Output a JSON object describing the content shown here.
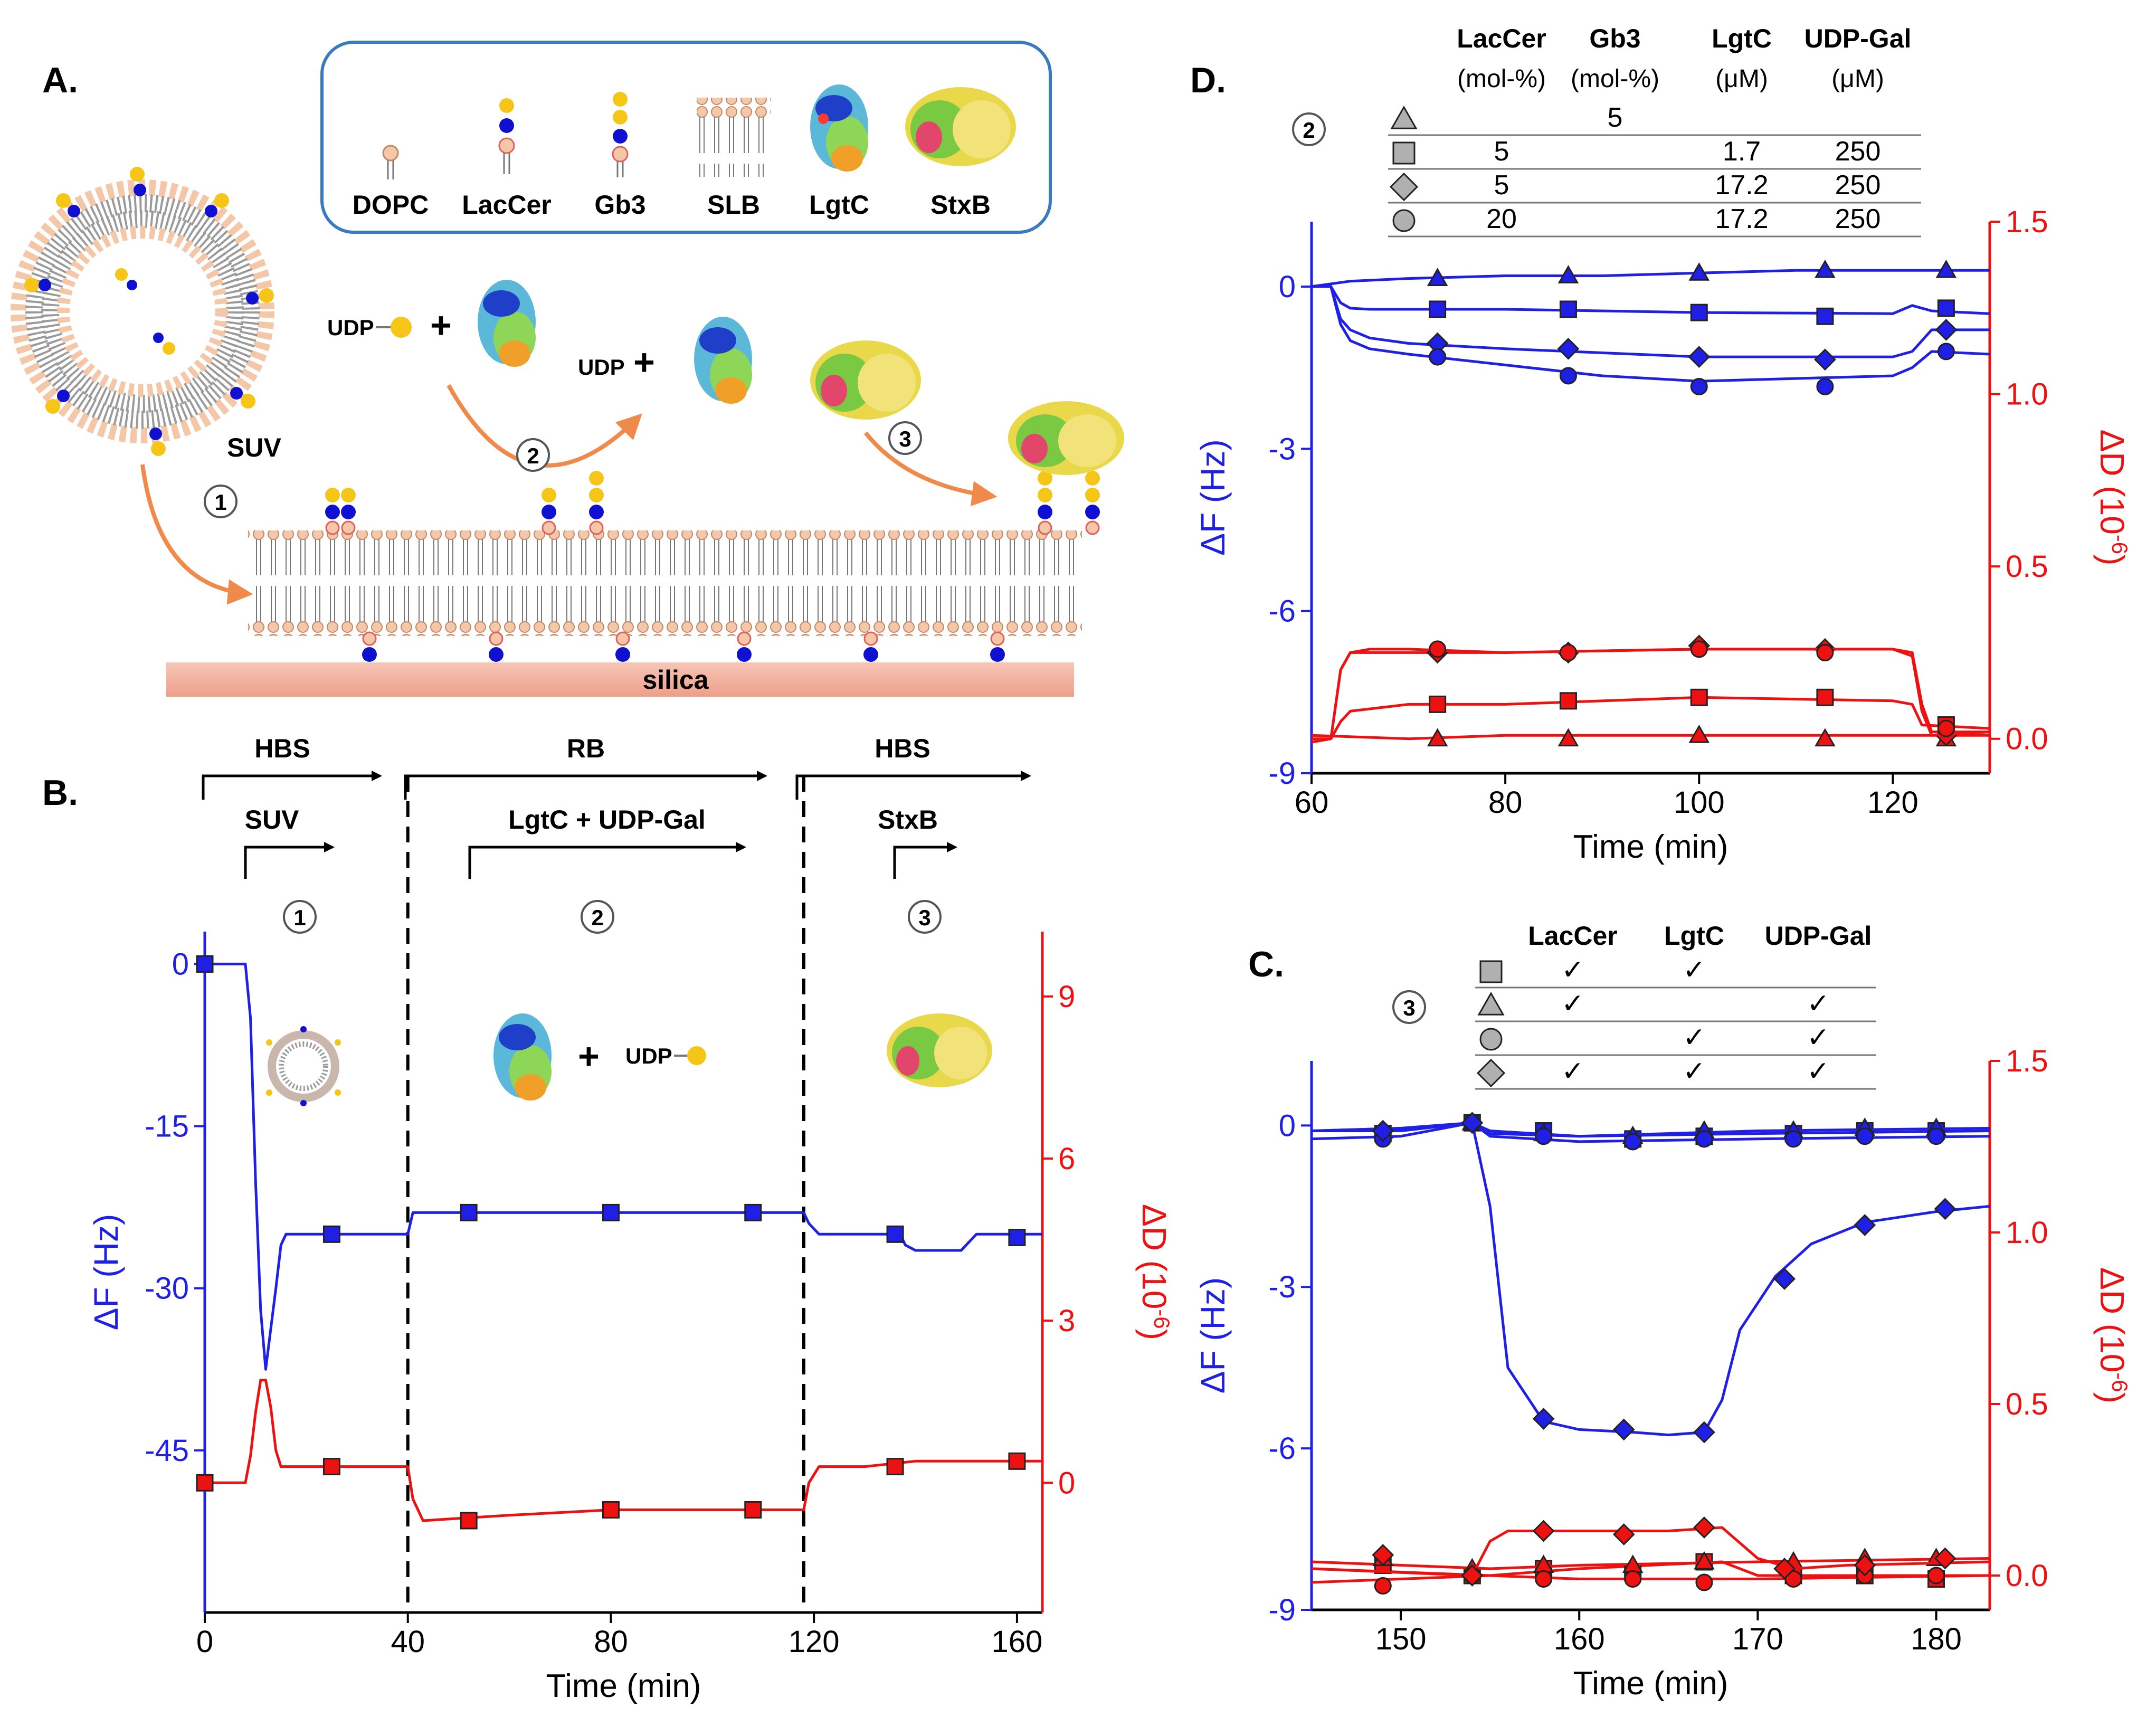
{
  "colors": {
    "freq": "#1f1fe6",
    "diss": "#ee1111",
    "arrow": "#f08a4b",
    "box": "#3a7bbf"
  },
  "panelA": {
    "label": "A.",
    "legend": [
      "DOPC",
      "LacCer",
      "Gb3",
      "SLB",
      "LgtC",
      "StxB"
    ],
    "suv": "SUV",
    "udp_sugar": "UDP",
    "udp": "UDP",
    "plus": "+",
    "silica": "silica",
    "steps": [
      "1",
      "2",
      "3"
    ]
  },
  "panelB": {
    "label": "B.",
    "phases": [
      {
        "buffer": "HBS",
        "inj": "SUV",
        "num": "1"
      },
      {
        "buffer": "RB",
        "inj": "LgtC + UDP-Gal",
        "num": "2"
      },
      {
        "buffer": "HBS",
        "inj": "StxB",
        "num": "3"
      }
    ],
    "cartoon_udp": "UDP",
    "cartoon_plus": "+"
  },
  "panelC": {
    "label": "C.",
    "step": "3",
    "headers": [
      "LacCer",
      "LgtC",
      "UDP-Gal"
    ],
    "rows": [
      {
        "marker": "square",
        "cells": [
          "✓",
          "✓",
          ""
        ]
      },
      {
        "marker": "triangle",
        "cells": [
          "✓",
          "",
          "✓"
        ]
      },
      {
        "marker": "circle",
        "cells": [
          "",
          "✓",
          "✓"
        ]
      },
      {
        "marker": "diamond",
        "cells": [
          "✓",
          "✓",
          "✓"
        ]
      }
    ]
  },
  "panelD": {
    "label": "D.",
    "step": "2",
    "headers": [
      [
        "LacCer",
        "(mol-%)"
      ],
      [
        "Gb3",
        "(mol-%)"
      ],
      [
        "LgtC",
        "(μM)"
      ],
      [
        "UDP-Gal",
        "(μM)"
      ]
    ],
    "rows": [
      {
        "marker": "triangle",
        "cells": [
          "",
          "5",
          "",
          ""
        ]
      },
      {
        "marker": "square",
        "cells": [
          "5",
          "",
          "1.7",
          "250"
        ]
      },
      {
        "marker": "diamond",
        "cells": [
          "5",
          "",
          "17.2",
          "250"
        ]
      },
      {
        "marker": "circle",
        "cells": [
          "20",
          "",
          "17.2",
          "250"
        ]
      }
    ]
  },
  "chart_data": [
    {
      "id": "B",
      "type": "line",
      "title": "",
      "xlabel": "Time (min)",
      "ylabel_left": "ΔF (Hz)",
      "ylabel_right": "ΔD (10",
      "ylabel_right_sup": "-6",
      "ylabel_right_end": ")",
      "xlim": [
        0,
        165
      ],
      "xticks": [
        0,
        40,
        80,
        120,
        160
      ],
      "ylim_left": [
        -60,
        3
      ],
      "yticks_left": [
        0,
        -15,
        -30,
        -45
      ],
      "ylim_right": [
        -2.4,
        10.2
      ],
      "yticks_right": [
        0,
        3,
        6,
        9
      ],
      "phase_lines": [
        40,
        118
      ],
      "series": [
        {
          "name": "ΔF",
          "axis": "left",
          "marker": "square",
          "x": [
            0,
            8,
            9,
            10,
            11,
            12,
            14,
            15,
            16,
            20,
            30,
            40,
            41,
            43,
            60,
            80,
            100,
            118,
            119,
            121,
            130,
            137,
            138,
            140,
            145,
            149,
            150,
            152,
            155,
            160,
            165
          ],
          "y": [
            0,
            0,
            -5,
            -20,
            -32,
            -37.5,
            -30,
            -26,
            -25,
            -25,
            -25,
            -25,
            -23,
            -23,
            -23,
            -23,
            -23,
            -23,
            -24,
            -25,
            -25,
            -25,
            -26,
            -26.5,
            -26.5,
            -26.5,
            -26,
            -25,
            -25,
            -25,
            -25
          ],
          "markers_x": [
            0,
            25,
            52,
            80,
            108,
            136,
            160
          ],
          "markers_y": [
            0,
            -25,
            -23,
            -23,
            -23,
            -25,
            -25.3
          ]
        },
        {
          "name": "ΔD",
          "axis": "right",
          "marker": "square",
          "x": [
            0,
            8,
            9,
            10,
            11,
            12,
            13,
            14,
            15,
            20,
            30,
            40,
            41,
            43,
            60,
            80,
            100,
            118,
            119,
            121,
            130,
            140,
            150,
            165
          ],
          "y": [
            0,
            0,
            0.5,
            1.3,
            1.9,
            1.9,
            1.4,
            0.6,
            0.3,
            0.3,
            0.3,
            0.3,
            -0.3,
            -0.7,
            -0.6,
            -0.5,
            -0.5,
            -0.5,
            0,
            0.3,
            0.3,
            0.4,
            0.4,
            0.4
          ],
          "markers_x": [
            0,
            25,
            52,
            80,
            108,
            136,
            160
          ],
          "markers_y": [
            0,
            0.3,
            -0.7,
            -0.5,
            -0.5,
            0.3,
            0.4
          ]
        }
      ]
    },
    {
      "id": "C",
      "type": "line",
      "xlabel": "Time (min)",
      "ylabel_left": "ΔF (Hz)",
      "ylabel_right": "ΔD (10",
      "ylabel_right_sup": "-6",
      "ylabel_right_end": ")",
      "xlim": [
        145,
        183
      ],
      "xticks": [
        150,
        160,
        170,
        180
      ],
      "ylim_left": [
        -9,
        1.2
      ],
      "yticks_left": [
        0,
        -3,
        -6,
        -9
      ],
      "ylim_right": [
        -0.1,
        1.5
      ],
      "yticks_right": [
        0.0,
        0.5,
        1.0,
        1.5
      ],
      "series": [
        {
          "name": "ΔF square",
          "axis": "left",
          "marker": "square",
          "x": [
            145,
            150,
            154,
            155,
            160,
            170,
            183
          ],
          "y": [
            -0.1,
            -0.1,
            0.05,
            -0.1,
            -0.2,
            -0.15,
            -0.1
          ],
          "markers_x": [
            149,
            154,
            158,
            163,
            167,
            172,
            176,
            180
          ],
          "markers_y": [
            -0.15,
            0.05,
            -0.1,
            -0.25,
            -0.2,
            -0.15,
            -0.1,
            -0.1
          ]
        },
        {
          "name": "ΔF triangle",
          "axis": "left",
          "marker": "triangle",
          "x": [
            145,
            150,
            154,
            155,
            160,
            170,
            183
          ],
          "y": [
            -0.1,
            -0.05,
            0.05,
            -0.15,
            -0.2,
            -0.1,
            -0.05
          ],
          "markers_x": [
            149,
            154,
            158,
            163,
            167,
            172,
            176,
            180
          ],
          "markers_y": [
            -0.1,
            0.05,
            -0.15,
            -0.2,
            -0.1,
            -0.1,
            -0.05,
            -0.05
          ]
        },
        {
          "name": "ΔF circle",
          "axis": "left",
          "marker": "circle",
          "x": [
            145,
            150,
            154,
            155,
            160,
            170,
            183
          ],
          "y": [
            -0.25,
            -0.2,
            0.05,
            -0.2,
            -0.3,
            -0.25,
            -0.2
          ],
          "markers_x": [
            149,
            154,
            158,
            163,
            167,
            172,
            176,
            180
          ],
          "markers_y": [
            -0.25,
            0.05,
            -0.2,
            -0.3,
            -0.25,
            -0.25,
            -0.2,
            -0.2
          ]
        },
        {
          "name": "ΔF diamond",
          "axis": "left",
          "marker": "diamond",
          "x": [
            145,
            150,
            154,
            155,
            156,
            158,
            160,
            163,
            165,
            167,
            168,
            169,
            171,
            173,
            176,
            180,
            183
          ],
          "y": [
            -0.1,
            -0.05,
            0.05,
            -1.5,
            -4.5,
            -5.5,
            -5.65,
            -5.7,
            -5.75,
            -5.7,
            -5.1,
            -3.8,
            -2.8,
            -2.2,
            -1.8,
            -1.6,
            -1.5
          ],
          "markers_x": [
            149,
            154,
            158,
            162.5,
            167,
            171.5,
            176,
            180.5
          ],
          "markers_y": [
            -0.1,
            0.05,
            -5.45,
            -5.65,
            -5.7,
            -2.85,
            -1.85,
            -1.55
          ]
        },
        {
          "name": "ΔD square",
          "axis": "right",
          "marker": "square",
          "x": [
            145,
            155,
            160,
            168,
            170,
            175,
            183
          ],
          "y": [
            0.02,
            0.0,
            0.02,
            0.04,
            0.0,
            0.0,
            0.0
          ],
          "markers_x": [
            149,
            154,
            158,
            163,
            167,
            172,
            176,
            180
          ],
          "markers_y": [
            0.03,
            0.0,
            0.02,
            0.01,
            0.04,
            0.0,
            0.0,
            -0.01
          ]
        },
        {
          "name": "ΔD triangle",
          "axis": "right",
          "marker": "triangle",
          "x": [
            145,
            155,
            160,
            170,
            183
          ],
          "y": [
            0.04,
            0.02,
            0.03,
            0.04,
            0.05
          ],
          "markers_x": [
            149,
            154,
            158,
            163,
            167,
            172,
            176,
            180
          ],
          "markers_y": [
            0.05,
            0.02,
            0.03,
            0.03,
            0.04,
            0.04,
            0.05,
            0.05
          ]
        },
        {
          "name": "ΔD circle",
          "axis": "right",
          "marker": "circle",
          "x": [
            145,
            155,
            160,
            170,
            183
          ],
          "y": [
            -0.02,
            0.0,
            -0.01,
            -0.01,
            0.0
          ],
          "markers_x": [
            149,
            154,
            158,
            163,
            167,
            172,
            176,
            180
          ],
          "markers_y": [
            -0.03,
            0.0,
            -0.01,
            -0.01,
            -0.02,
            -0.01,
            0.0,
            0.0
          ]
        },
        {
          "name": "ΔD diamond",
          "axis": "right",
          "marker": "diamond",
          "x": [
            145,
            154,
            155,
            156,
            160,
            165,
            168,
            170,
            172,
            175,
            183
          ],
          "y": [
            0.02,
            0.0,
            0.1,
            0.13,
            0.13,
            0.13,
            0.14,
            0.05,
            0.02,
            0.03,
            0.04
          ],
          "markers_x": [
            149,
            154,
            158,
            162.5,
            167,
            171.5,
            176,
            180.5
          ],
          "markers_y": [
            0.06,
            0.0,
            0.13,
            0.12,
            0.14,
            0.02,
            0.03,
            0.05
          ]
        }
      ]
    },
    {
      "id": "D",
      "type": "line",
      "xlabel": "Time (min)",
      "ylabel_left": "ΔF (Hz)",
      "ylabel_right": "ΔD (10",
      "ylabel_right_sup": "-6",
      "ylabel_right_end": ")",
      "xlim": [
        60,
        130
      ],
      "xticks": [
        60,
        80,
        100,
        120
      ],
      "ylim_left": [
        -9,
        1.2
      ],
      "yticks_left": [
        0,
        -3,
        -6,
        -9
      ],
      "ylim_right": [
        -0.1,
        1.5
      ],
      "yticks_right": [
        0.0,
        0.5,
        1.0,
        1.5
      ],
      "series": [
        {
          "name": "ΔF triangle",
          "axis": "left",
          "marker": "triangle",
          "x": [
            60,
            62,
            64,
            70,
            80,
            90,
            100,
            110,
            120,
            130
          ],
          "y": [
            0,
            0.05,
            0.1,
            0.15,
            0.2,
            0.2,
            0.25,
            0.3,
            0.3,
            0.3
          ],
          "markers_x": [
            73,
            86.5,
            100,
            113,
            125.5
          ],
          "markers_y": [
            0.15,
            0.2,
            0.25,
            0.3,
            0.3
          ]
        },
        {
          "name": "ΔF square",
          "axis": "left",
          "marker": "square",
          "x": [
            60,
            62,
            63,
            64,
            66,
            70,
            80,
            100,
            120,
            122,
            124,
            130
          ],
          "y": [
            0,
            0,
            -0.3,
            -0.4,
            -0.42,
            -0.42,
            -0.42,
            -0.48,
            -0.5,
            -0.35,
            -0.45,
            -0.5
          ],
          "markers_x": [
            73,
            86.5,
            100,
            113,
            125.5
          ],
          "markers_y": [
            -0.42,
            -0.42,
            -0.48,
            -0.55,
            -0.4
          ]
        },
        {
          "name": "ΔF diamond",
          "axis": "left",
          "marker": "diamond",
          "x": [
            60,
            62,
            63,
            64,
            66,
            70,
            80,
            100,
            120,
            122,
            124,
            130
          ],
          "y": [
            0,
            0,
            -0.6,
            -0.8,
            -0.95,
            -1.05,
            -1.15,
            -1.3,
            -1.3,
            -1.2,
            -0.8,
            -0.8
          ],
          "markers_x": [
            73,
            86.5,
            100,
            113,
            125.5
          ],
          "markers_y": [
            -1.05,
            -1.15,
            -1.3,
            -1.35,
            -0.8
          ]
        },
        {
          "name": "ΔF circle",
          "axis": "left",
          "marker": "circle",
          "x": [
            60,
            62,
            63,
            64,
            66,
            70,
            80,
            90,
            100,
            110,
            120,
            122,
            124,
            130
          ],
          "y": [
            0,
            0,
            -0.7,
            -1.0,
            -1.15,
            -1.25,
            -1.45,
            -1.65,
            -1.75,
            -1.7,
            -1.65,
            -1.5,
            -1.2,
            -1.25
          ],
          "markers_x": [
            73,
            86.5,
            100,
            113,
            125.5
          ],
          "markers_y": [
            -1.3,
            -1.65,
            -1.85,
            -1.85,
            -1.2
          ]
        },
        {
          "name": "ΔD triangle",
          "axis": "right",
          "marker": "triangle",
          "x": [
            60,
            70,
            80,
            100,
            120,
            130
          ],
          "y": [
            0.01,
            0.0,
            0.01,
            0.01,
            0.01,
            0.01
          ],
          "markers_x": [
            73,
            86.5,
            100,
            113,
            125.5
          ],
          "markers_y": [
            0.0,
            0.0,
            0.01,
            0.0,
            0.0
          ]
        },
        {
          "name": "ΔD square",
          "axis": "right",
          "marker": "square",
          "x": [
            60,
            62,
            63,
            64,
            70,
            80,
            100,
            120,
            122,
            123,
            130
          ],
          "y": [
            0.0,
            0.0,
            0.05,
            0.08,
            0.1,
            0.1,
            0.12,
            0.11,
            0.1,
            0.04,
            0.03
          ],
          "markers_x": [
            73,
            86.5,
            100,
            113,
            125.5
          ],
          "markers_y": [
            0.1,
            0.11,
            0.12,
            0.12,
            0.04
          ]
        },
        {
          "name": "ΔD diamond",
          "axis": "right",
          "marker": "diamond",
          "x": [
            60,
            62,
            63,
            64,
            66,
            70,
            80,
            100,
            120,
            122,
            123,
            124,
            130
          ],
          "y": [
            0.0,
            0.0,
            0.2,
            0.25,
            0.25,
            0.25,
            0.25,
            0.26,
            0.26,
            0.25,
            0.1,
            0.02,
            0.02
          ],
          "markers_x": [
            73,
            86.5,
            100,
            113,
            125.5
          ],
          "markers_y": [
            0.25,
            0.25,
            0.27,
            0.26,
            0.01
          ]
        },
        {
          "name": "ΔD circle",
          "axis": "right",
          "marker": "circle",
          "x": [
            60,
            62,
            63,
            64,
            66,
            70,
            80,
            100,
            120,
            122,
            123,
            124,
            130
          ],
          "y": [
            -0.01,
            0.0,
            0.2,
            0.25,
            0.26,
            0.26,
            0.25,
            0.26,
            0.26,
            0.24,
            0.08,
            0.01,
            0.02
          ],
          "markers_x": [
            73,
            86.5,
            100,
            113,
            125.5
          ],
          "markers_y": [
            0.26,
            0.25,
            0.26,
            0.25,
            0.03
          ]
        }
      ]
    }
  ]
}
